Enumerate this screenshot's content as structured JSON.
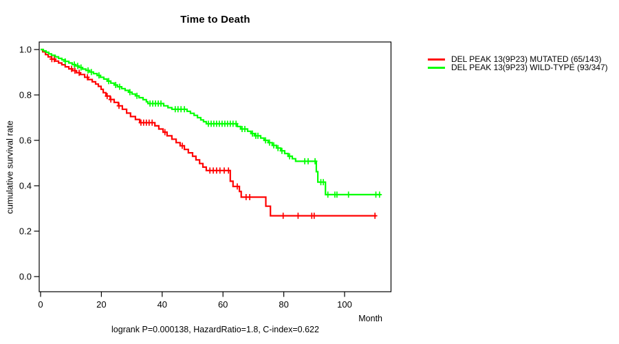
{
  "chart": {
    "title": "Time to Death",
    "ylabel": "cumulative survival rate",
    "xlabel": "Month",
    "annotation": "logrank P=0.000138, HazardRatio=1.8, C-index=0.622"
  },
  "legend": {
    "items": [
      {
        "label": "DEL PEAK 13(9P23) MUTATED (65/143)",
        "color": "#ff0000"
      },
      {
        "label": "DEL PEAK 13(9P23) WILD-TYPE (93/347)",
        "color": "#00ff00"
      }
    ]
  },
  "chart_data": {
    "type": "line",
    "subtype": "kaplan-meier-step",
    "title": "Time to Death",
    "xlabel": "Month",
    "ylabel": "cumulative survival rate",
    "xlim": [
      0,
      115
    ],
    "ylim": [
      0,
      1.0
    ],
    "x_ticks": [
      0,
      20,
      40,
      60,
      80,
      100
    ],
    "y_ticks": [
      0.0,
      0.2,
      0.4,
      0.6,
      0.8,
      1.0
    ],
    "grid": false,
    "legend_position": "right-outside",
    "series": [
      {
        "name": "DEL PEAK 13(9P23) MUTATED (65/143)",
        "color": "#ff0000",
        "end_time": 110.4,
        "steps": [
          [
            0,
            1.0
          ],
          [
            0.7,
            0.99
          ],
          [
            1.6,
            0.978
          ],
          [
            2.5,
            0.968
          ],
          [
            3.6,
            0.958
          ],
          [
            4.8,
            0.949
          ],
          [
            5.9,
            0.941
          ],
          [
            7.0,
            0.933
          ],
          [
            8.1,
            0.924
          ],
          [
            9.3,
            0.915
          ],
          [
            10.4,
            0.907
          ],
          [
            11.8,
            0.898
          ],
          [
            13.1,
            0.89
          ],
          [
            14.5,
            0.878
          ],
          [
            15.6,
            0.868
          ],
          [
            17.0,
            0.858
          ],
          [
            18.1,
            0.848
          ],
          [
            19.0,
            0.838
          ],
          [
            19.9,
            0.825
          ],
          [
            20.6,
            0.81
          ],
          [
            21.5,
            0.795
          ],
          [
            22.9,
            0.78
          ],
          [
            24.2,
            0.767
          ],
          [
            25.6,
            0.752
          ],
          [
            26.9,
            0.737
          ],
          [
            28.3,
            0.72
          ],
          [
            29.6,
            0.705
          ],
          [
            31.2,
            0.692
          ],
          [
            32.6,
            0.678
          ],
          [
            37.6,
            0.664
          ],
          [
            38.9,
            0.65
          ],
          [
            40.3,
            0.636
          ],
          [
            41.6,
            0.62
          ],
          [
            43.2,
            0.605
          ],
          [
            44.6,
            0.59
          ],
          [
            45.9,
            0.576
          ],
          [
            47.3,
            0.56
          ],
          [
            48.6,
            0.545
          ],
          [
            50.0,
            0.53
          ],
          [
            51.1,
            0.514
          ],
          [
            52.3,
            0.498
          ],
          [
            53.4,
            0.482
          ],
          [
            54.5,
            0.467
          ],
          [
            62.4,
            0.42
          ],
          [
            63.3,
            0.397
          ],
          [
            65.4,
            0.375
          ],
          [
            66.0,
            0.35
          ],
          [
            74.1,
            0.31
          ],
          [
            75.6,
            0.268
          ]
        ],
        "censor_times": [
          3.7,
          4.5,
          10.2,
          11.3,
          12.7,
          15.4,
          21.9,
          23.1,
          25.8,
          33.0,
          33.9,
          34.8,
          35.7,
          36.7,
          40.9,
          46.6,
          55.7,
          56.8,
          57.9,
          59.0,
          60.4,
          61.8,
          64.7,
          67.6,
          68.8,
          79.8,
          84.7,
          89.2,
          90.0,
          110.0
        ]
      },
      {
        "name": "DEL PEAK 13(9P23) WILD-TYPE (93/347)",
        "color": "#00ff00",
        "end_time": 111.9,
        "steps": [
          [
            0,
            1.0
          ],
          [
            0.9,
            0.994
          ],
          [
            1.8,
            0.988
          ],
          [
            2.7,
            0.981
          ],
          [
            3.6,
            0.975
          ],
          [
            4.8,
            0.968
          ],
          [
            5.9,
            0.961
          ],
          [
            7.0,
            0.955
          ],
          [
            8.1,
            0.948
          ],
          [
            9.3,
            0.941
          ],
          [
            10.4,
            0.934
          ],
          [
            11.5,
            0.928
          ],
          [
            12.7,
            0.921
          ],
          [
            13.8,
            0.914
          ],
          [
            14.9,
            0.908
          ],
          [
            16.1,
            0.901
          ],
          [
            17.4,
            0.894
          ],
          [
            18.6,
            0.886
          ],
          [
            19.7,
            0.878
          ],
          [
            20.8,
            0.87
          ],
          [
            21.9,
            0.861
          ],
          [
            23.1,
            0.852
          ],
          [
            24.2,
            0.844
          ],
          [
            25.3,
            0.836
          ],
          [
            26.7,
            0.828
          ],
          [
            27.8,
            0.82
          ],
          [
            29.0,
            0.812
          ],
          [
            30.1,
            0.804
          ],
          [
            31.2,
            0.796
          ],
          [
            32.4,
            0.788
          ],
          [
            33.7,
            0.779
          ],
          [
            34.8,
            0.77
          ],
          [
            35.3,
            0.762
          ],
          [
            40.5,
            0.752
          ],
          [
            41.9,
            0.744
          ],
          [
            43.2,
            0.737
          ],
          [
            48.2,
            0.728
          ],
          [
            49.3,
            0.719
          ],
          [
            50.5,
            0.71
          ],
          [
            51.6,
            0.7
          ],
          [
            52.7,
            0.69
          ],
          [
            53.6,
            0.682
          ],
          [
            54.5,
            0.673
          ],
          [
            64.7,
            0.661
          ],
          [
            65.8,
            0.65
          ],
          [
            68.1,
            0.64
          ],
          [
            69.2,
            0.63
          ],
          [
            70.4,
            0.62
          ],
          [
            72.4,
            0.61
          ],
          [
            73.5,
            0.6
          ],
          [
            74.9,
            0.59
          ],
          [
            76.2,
            0.578
          ],
          [
            77.6,
            0.566
          ],
          [
            79.0,
            0.554
          ],
          [
            80.3,
            0.542
          ],
          [
            81.4,
            0.53
          ],
          [
            82.8,
            0.519
          ],
          [
            83.9,
            0.508
          ],
          [
            90.7,
            0.462
          ],
          [
            91.2,
            0.416
          ],
          [
            93.7,
            0.361
          ]
        ],
        "censor_times": [
          8.1,
          11.1,
          12.2,
          13.3,
          15.6,
          16.7,
          19.2,
          22.4,
          24.7,
          26.0,
          29.4,
          31.7,
          36.0,
          36.9,
          37.8,
          38.7,
          39.6,
          44.3,
          45.2,
          46.2,
          47.3,
          55.2,
          56.1,
          57.0,
          57.9,
          58.8,
          59.7,
          60.6,
          61.5,
          62.4,
          63.3,
          64.3,
          66.3,
          67.2,
          69.7,
          70.8,
          71.5,
          74.0,
          75.3,
          76.7,
          78.1,
          79.4,
          81.9,
          86.9,
          88.0,
          90.3,
          92.2,
          93.0,
          94.5,
          96.8,
          97.5,
          101.3,
          110.3,
          111.5
        ]
      }
    ]
  }
}
